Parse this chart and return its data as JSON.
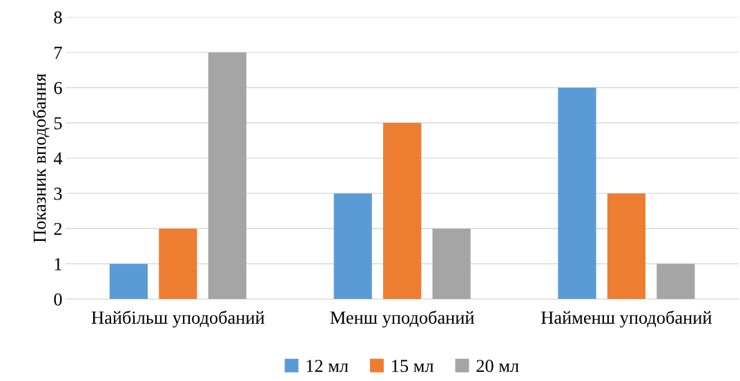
{
  "chart_data": {
    "type": "bar",
    "ylabel": "Показник вподобання",
    "categories": [
      "Найбільш уподобаний",
      "Менш уподобаний",
      "Найменш уподобаний"
    ],
    "series": [
      {
        "name": "12 мл",
        "color": "#5b9bd5",
        "values": [
          1,
          3,
          6
        ]
      },
      {
        "name": "15 мл",
        "color": "#ed7d31",
        "values": [
          2,
          5,
          3
        ]
      },
      {
        "name": "20 мл",
        "color": "#a5a5a5",
        "values": [
          7,
          2,
          1
        ]
      }
    ],
    "ylim": [
      0,
      8
    ],
    "yticks": [
      0,
      1,
      2,
      3,
      4,
      5,
      6,
      7,
      8
    ],
    "grid": "y",
    "legend": "bottom"
  }
}
